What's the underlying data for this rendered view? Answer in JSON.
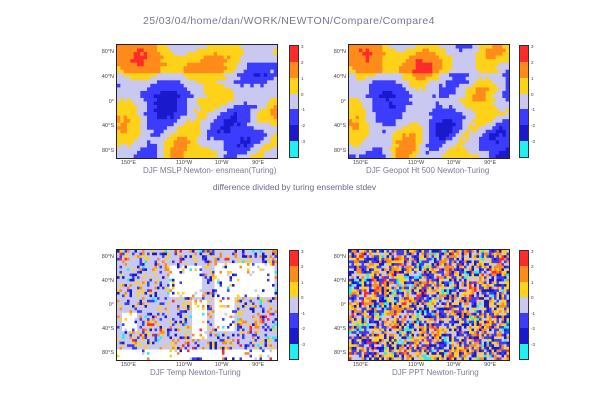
{
  "header": {
    "path": "25/03/04/home/dan/WORK/NEWTON/Compare/Compare4"
  },
  "subtitle": "difference divided by turing ensemble stdev",
  "colorbar": {
    "levels": [
      "3",
      "2",
      "1",
      "0",
      "-1",
      "-2",
      "-3"
    ],
    "colors": [
      "#ff2a2a",
      "#ff8c1a",
      "#ffd21a",
      "#c8c8f0",
      "#3c3cff",
      "#1a1acc",
      "#22f0f0"
    ]
  },
  "axes": {
    "lat_labels": [
      "80°N",
      "40°N",
      "0°",
      "40°S",
      "80°S"
    ],
    "lon_labels": [
      "150°E",
      "110°W",
      "10°W",
      "90°E"
    ]
  },
  "chart_data": [
    {
      "type": "heatmap",
      "title": "DJF MSLP Newton- ensmean(Turing)",
      "pattern": "smooth"
    },
    {
      "type": "heatmap",
      "title": "DJF Geopot Ht 500 Newton-Turing",
      "pattern": "smooth2"
    },
    {
      "type": "heatmap",
      "title": "DJF Temp Newton-Turing",
      "pattern": "land-masked"
    },
    {
      "type": "heatmap",
      "title": "DJF PPT Newton-Turing",
      "pattern": "noisy"
    }
  ]
}
